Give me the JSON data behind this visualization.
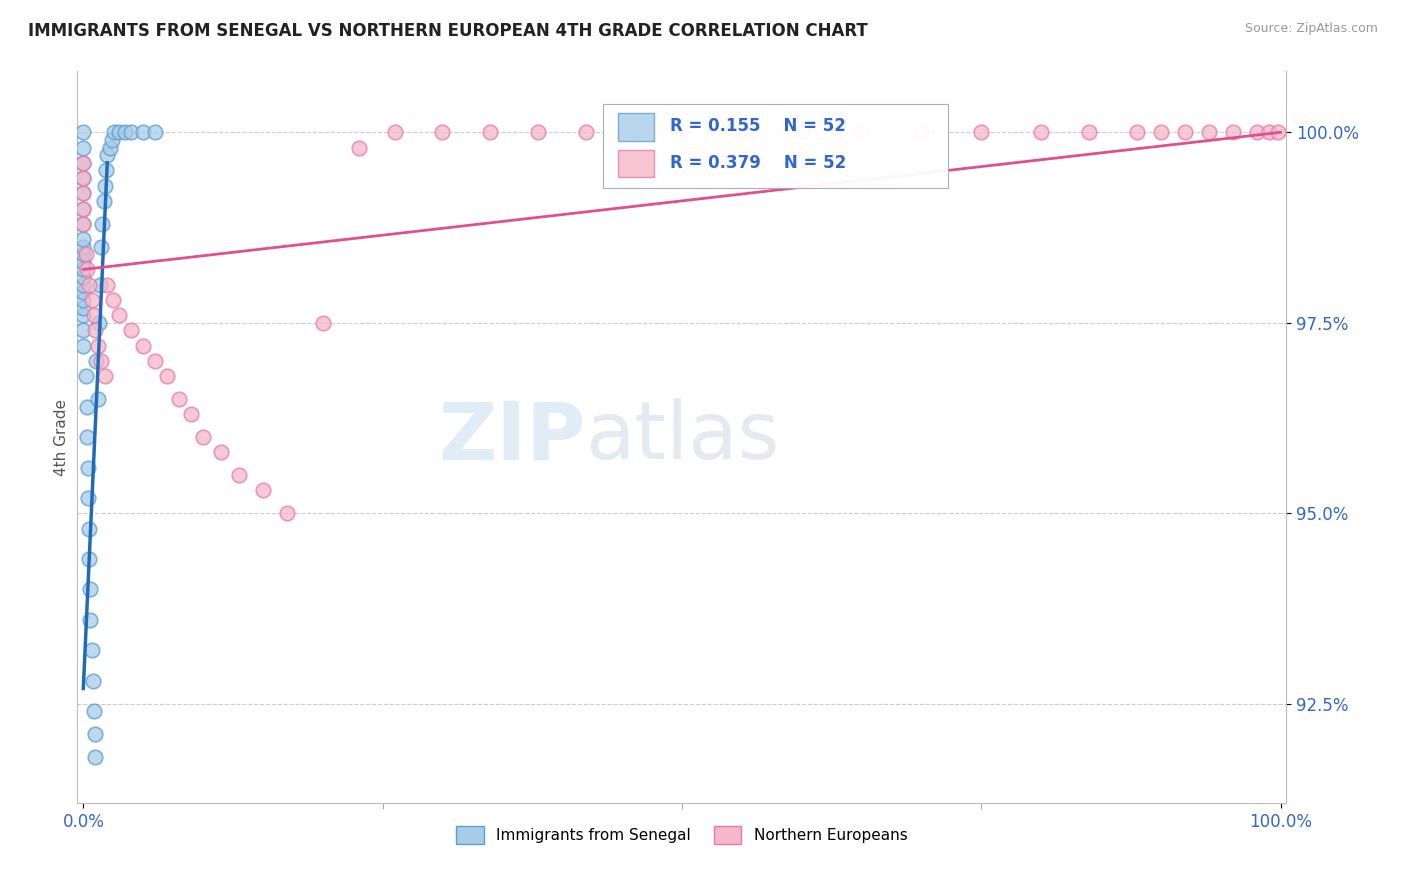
{
  "title": "IMMIGRANTS FROM SENEGAL VS NORTHERN EUROPEAN 4TH GRADE CORRELATION CHART",
  "source": "Source: ZipAtlas.com",
  "ylabel": "4th Grade",
  "ytick_labels": [
    "92.5%",
    "95.0%",
    "97.5%",
    "100.0%"
  ],
  "ytick_values": [
    0.925,
    0.95,
    0.975,
    1.0
  ],
  "xtick_labels": [
    "0.0%",
    "100.0%"
  ],
  "xtick_values": [
    0.0,
    1.0
  ],
  "legend_label_blue": "Immigrants from Senegal",
  "legend_label_pink": "Northern Europeans",
  "blue_color": "#a8cce8",
  "pink_color": "#f4b8c8",
  "blue_edge_color": "#5a9fd4",
  "pink_edge_color": "#e87aaa",
  "blue_line_color": "#1e6bb8",
  "pink_line_color": "#e05090",
  "watermark_zip": "ZIP",
  "watermark_atlas": "atlas",
  "title_fontsize": 12,
  "blue_scatter_x": [
    0.0,
    0.0,
    0.0,
    0.0,
    0.0,
    0.0,
    0.0,
    0.0,
    0.0,
    0.0,
    0.0,
    0.0,
    0.0,
    0.0,
    0.0,
    0.0,
    0.0,
    0.0,
    0.0,
    0.0,
    0.002,
    0.003,
    0.003,
    0.004,
    0.004,
    0.005,
    0.005,
    0.006,
    0.006,
    0.007,
    0.008,
    0.009,
    0.01,
    0.01,
    0.011,
    0.012,
    0.013,
    0.014,
    0.015,
    0.016,
    0.017,
    0.018,
    0.019,
    0.02,
    0.022,
    0.024,
    0.026,
    0.03,
    0.035,
    0.04,
    0.05,
    0.06
  ],
  "blue_scatter_y": [
    0.972,
    0.974,
    0.976,
    0.977,
    0.978,
    0.979,
    0.98,
    0.981,
    0.982,
    0.983,
    0.984,
    0.985,
    0.986,
    0.988,
    0.99,
    0.992,
    0.994,
    0.996,
    0.998,
    1.0,
    0.968,
    0.964,
    0.96,
    0.956,
    0.952,
    0.948,
    0.944,
    0.94,
    0.936,
    0.932,
    0.928,
    0.924,
    0.921,
    0.918,
    0.97,
    0.965,
    0.975,
    0.98,
    0.985,
    0.988,
    0.991,
    0.993,
    0.995,
    0.997,
    0.998,
    0.999,
    1.0,
    1.0,
    1.0,
    1.0,
    1.0,
    1.0
  ],
  "pink_scatter_x": [
    0.0,
    0.0,
    0.0,
    0.0,
    0.0,
    0.002,
    0.003,
    0.005,
    0.007,
    0.009,
    0.01,
    0.012,
    0.015,
    0.018,
    0.02,
    0.025,
    0.03,
    0.04,
    0.05,
    0.06,
    0.07,
    0.08,
    0.09,
    0.1,
    0.115,
    0.13,
    0.15,
    0.17,
    0.2,
    0.23,
    0.26,
    0.3,
    0.34,
    0.38,
    0.42,
    0.46,
    0.5,
    0.55,
    0.6,
    0.65,
    0.7,
    0.75,
    0.8,
    0.84,
    0.88,
    0.9,
    0.92,
    0.94,
    0.96,
    0.98,
    0.99,
    0.998
  ],
  "pink_scatter_y": [
    0.988,
    0.99,
    0.992,
    0.994,
    0.996,
    0.984,
    0.982,
    0.98,
    0.978,
    0.976,
    0.974,
    0.972,
    0.97,
    0.968,
    0.98,
    0.978,
    0.976,
    0.974,
    0.972,
    0.97,
    0.968,
    0.965,
    0.963,
    0.96,
    0.958,
    0.955,
    0.953,
    0.95,
    0.975,
    0.998,
    1.0,
    1.0,
    1.0,
    1.0,
    1.0,
    1.0,
    1.0,
    1.0,
    1.0,
    1.0,
    1.0,
    1.0,
    1.0,
    1.0,
    1.0,
    1.0,
    1.0,
    1.0,
    1.0,
    1.0,
    1.0,
    1.0
  ],
  "blue_line_x": [
    0.0,
    0.02
  ],
  "blue_line_y_start": 0.927,
  "blue_line_y_end": 0.996,
  "pink_line_x": [
    0.0,
    1.0
  ],
  "pink_line_y_start": 0.982,
  "pink_line_y_end": 1.0
}
